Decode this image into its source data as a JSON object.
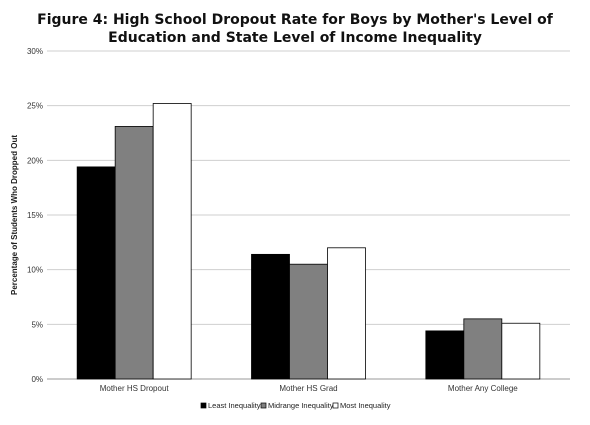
{
  "chart_data": {
    "type": "bar",
    "title": "Figure 4: High School Dropout Rate for Boys by Mother's Level of Education and State Level of Income Inequality",
    "title_lines": [
      "Figure 4: High School Dropout Rate for Boys by Mother's Level of",
      "Education and State Level of Income Inequality"
    ],
    "xlabel": "",
    "ylabel": "Percentage of Students Who Dropped Out",
    "categories": [
      "Mother HS Dropout",
      "Mother HS Grad",
      "Mother Any College"
    ],
    "series": [
      {
        "name": "Least Inequality",
        "color": "#000000",
        "values": [
          19.4,
          11.4,
          4.4
        ]
      },
      {
        "name": "Midrange Inequality",
        "color": "#808080",
        "values": [
          23.1,
          10.5,
          5.5
        ]
      },
      {
        "name": "Most Inequality",
        "color": "#ffffff",
        "values": [
          25.2,
          12.0,
          5.1
        ]
      }
    ],
    "ylim": [
      0,
      30
    ],
    "yticks": [
      0,
      5,
      10,
      15,
      20,
      25,
      30
    ],
    "ytick_labels": [
      "0%",
      "5%",
      "10%",
      "15%",
      "20%",
      "25%",
      "30%"
    ],
    "grid": true,
    "legend_position": "bottom"
  }
}
